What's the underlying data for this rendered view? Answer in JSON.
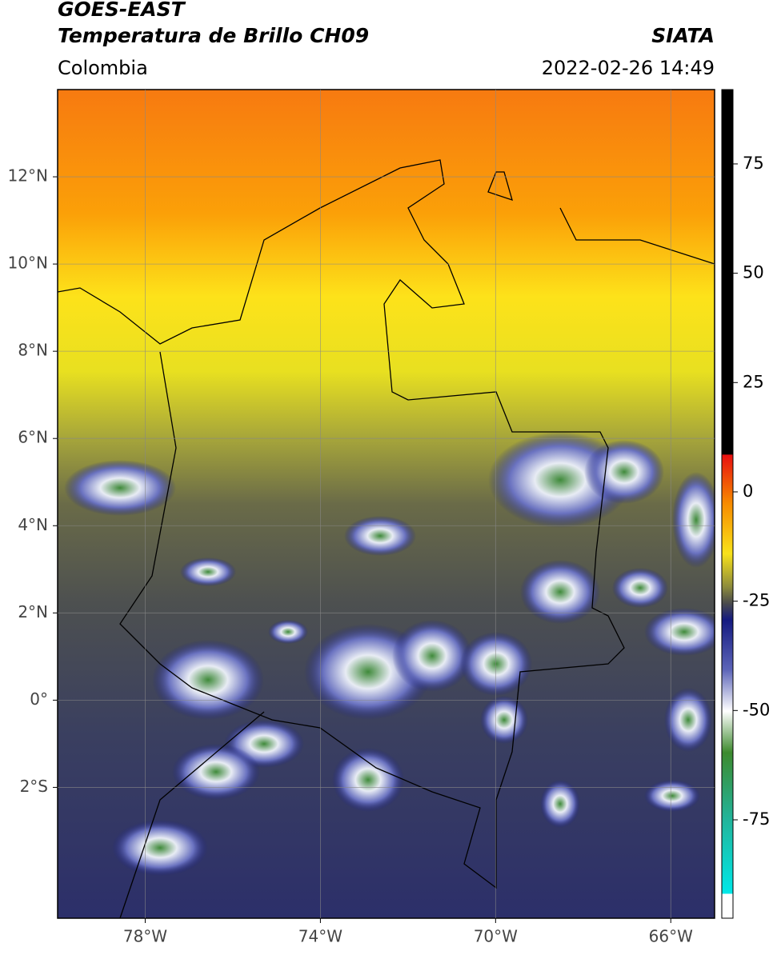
{
  "header": {
    "satellite": "GOES-EAST",
    "product": "Temperatura de Brillo CH09",
    "region": "Colombia",
    "source": "SIATA",
    "datetime": "2022-02-26 14:49"
  },
  "map": {
    "lonlim": [
      -80,
      -65
    ],
    "latlim": [
      -5,
      14
    ],
    "lonticks": [
      {
        "value": -78,
        "label": "78°W"
      },
      {
        "value": -74,
        "label": "74°W"
      },
      {
        "value": -70,
        "label": "70°W"
      },
      {
        "value": -66,
        "label": "66°W"
      }
    ],
    "latticks": [
      {
        "value": 12,
        "label": "12°N"
      },
      {
        "value": 10,
        "label": "10°N"
      },
      {
        "value": 8,
        "label": "8°N"
      },
      {
        "value": 6,
        "label": "6°N"
      },
      {
        "value": 4,
        "label": "4°N"
      },
      {
        "value": 2,
        "label": "2°N"
      },
      {
        "value": 0,
        "label": "0°"
      },
      {
        "value": -2,
        "label": "2°S"
      }
    ],
    "grid": true
  },
  "colorbar": {
    "lim": [
      -97.5,
      92
    ],
    "ticks": [
      75,
      50,
      25,
      0,
      -25,
      -50,
      -75
    ]
  }
}
